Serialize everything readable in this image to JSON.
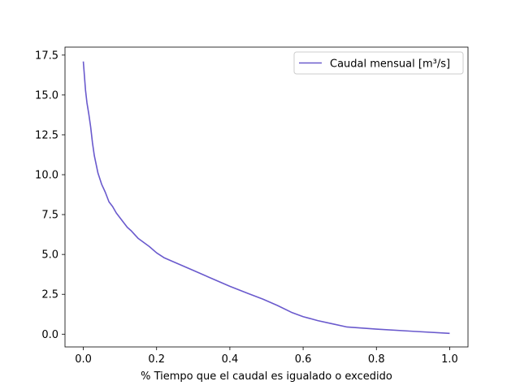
{
  "chart_data": {
    "type": "line",
    "title": "",
    "xlabel": "% Tiempo que el caudal es igualado o excedido",
    "ylabel": "",
    "xlim": [
      -0.05,
      1.05
    ],
    "ylim": [
      -0.8,
      18.0
    ],
    "xticks": [
      0.0,
      0.2,
      0.4,
      0.6,
      0.8,
      1.0
    ],
    "xtick_labels": [
      "0.0",
      "0.2",
      "0.4",
      "0.6",
      "0.8",
      "1.0"
    ],
    "yticks": [
      0.0,
      2.5,
      5.0,
      7.5,
      10.0,
      12.5,
      15.0,
      17.5
    ],
    "ytick_labels": [
      "0.0",
      "2.5",
      "5.0",
      "7.5",
      "10.0",
      "12.5",
      "15.0",
      "17.5"
    ],
    "grid": false,
    "legend": "top-right",
    "series": [
      {
        "name": "Caudal mensual [m³/s]",
        "color": "#6a5acd",
        "x": [
          0.0,
          0.003,
          0.006,
          0.01,
          0.015,
          0.02,
          0.025,
          0.03,
          0.04,
          0.05,
          0.06,
          0.07,
          0.08,
          0.09,
          0.1,
          0.12,
          0.13,
          0.15,
          0.18,
          0.2,
          0.22,
          0.25,
          0.3,
          0.35,
          0.4,
          0.45,
          0.49,
          0.53,
          0.57,
          0.6,
          0.64,
          0.68,
          0.72,
          0.8,
          0.9,
          1.0
        ],
        "y": [
          17.1,
          16.2,
          15.3,
          14.5,
          13.8,
          13.0,
          12.0,
          11.2,
          10.1,
          9.4,
          8.9,
          8.3,
          8.0,
          7.6,
          7.3,
          6.7,
          6.5,
          6.0,
          5.5,
          5.1,
          4.8,
          4.5,
          4.0,
          3.5,
          3.0,
          2.55,
          2.2,
          1.8,
          1.35,
          1.1,
          0.85,
          0.65,
          0.45,
          0.32,
          0.18,
          0.05
        ]
      }
    ]
  }
}
